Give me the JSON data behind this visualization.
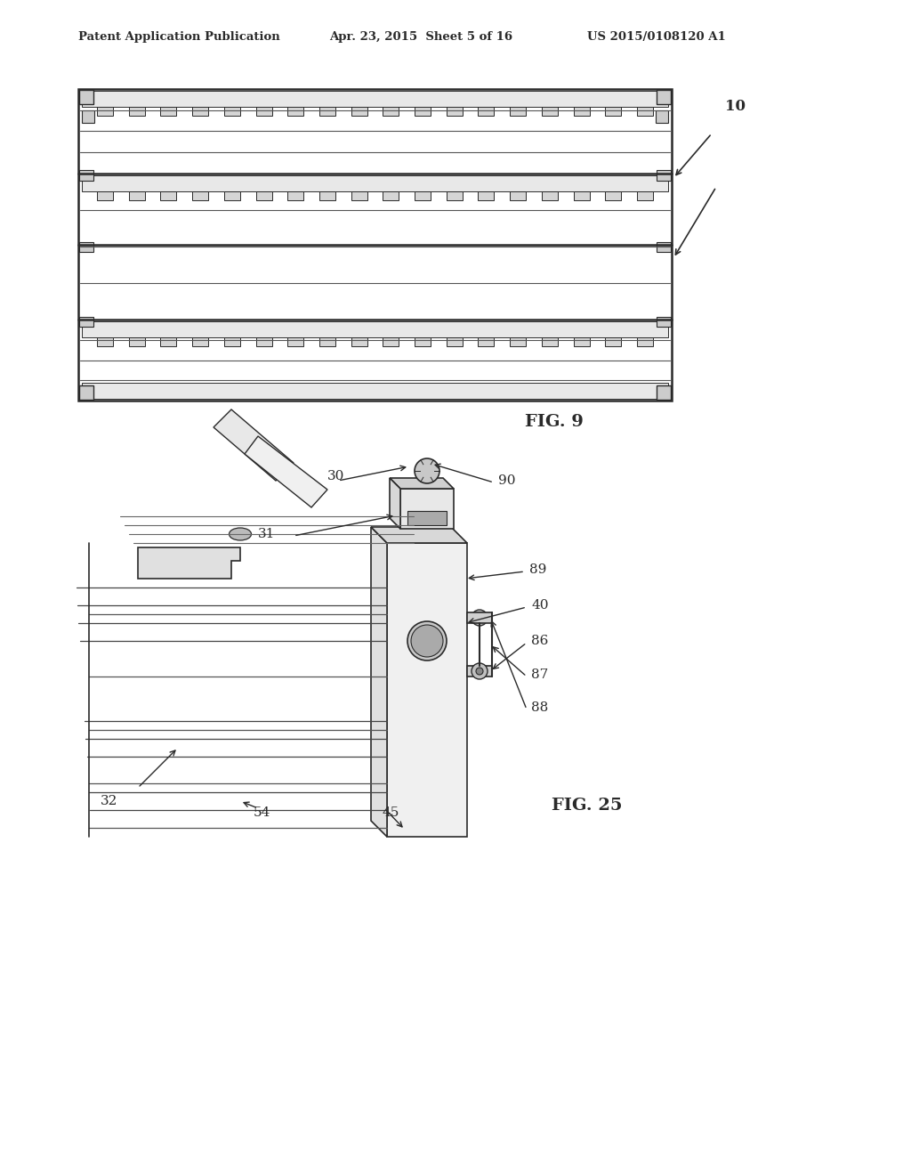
{
  "header_left": "Patent Application Publication",
  "header_mid": "Apr. 23, 2015  Sheet 5 of 16",
  "header_right": "US 2015/0108120 A1",
  "fig9_label": "FIG. 9",
  "fig25_label": "FIG. 25",
  "bg_color": "#ffffff",
  "line_color": "#2a2a2a",
  "label_10": "10",
  "label_30": "30",
  "label_31": "31",
  "label_32": "32",
  "label_40": "40",
  "label_45": "45",
  "label_54": "54",
  "label_86": "86",
  "label_87": "87",
  "label_88": "88",
  "label_89": "89",
  "label_90": "90"
}
